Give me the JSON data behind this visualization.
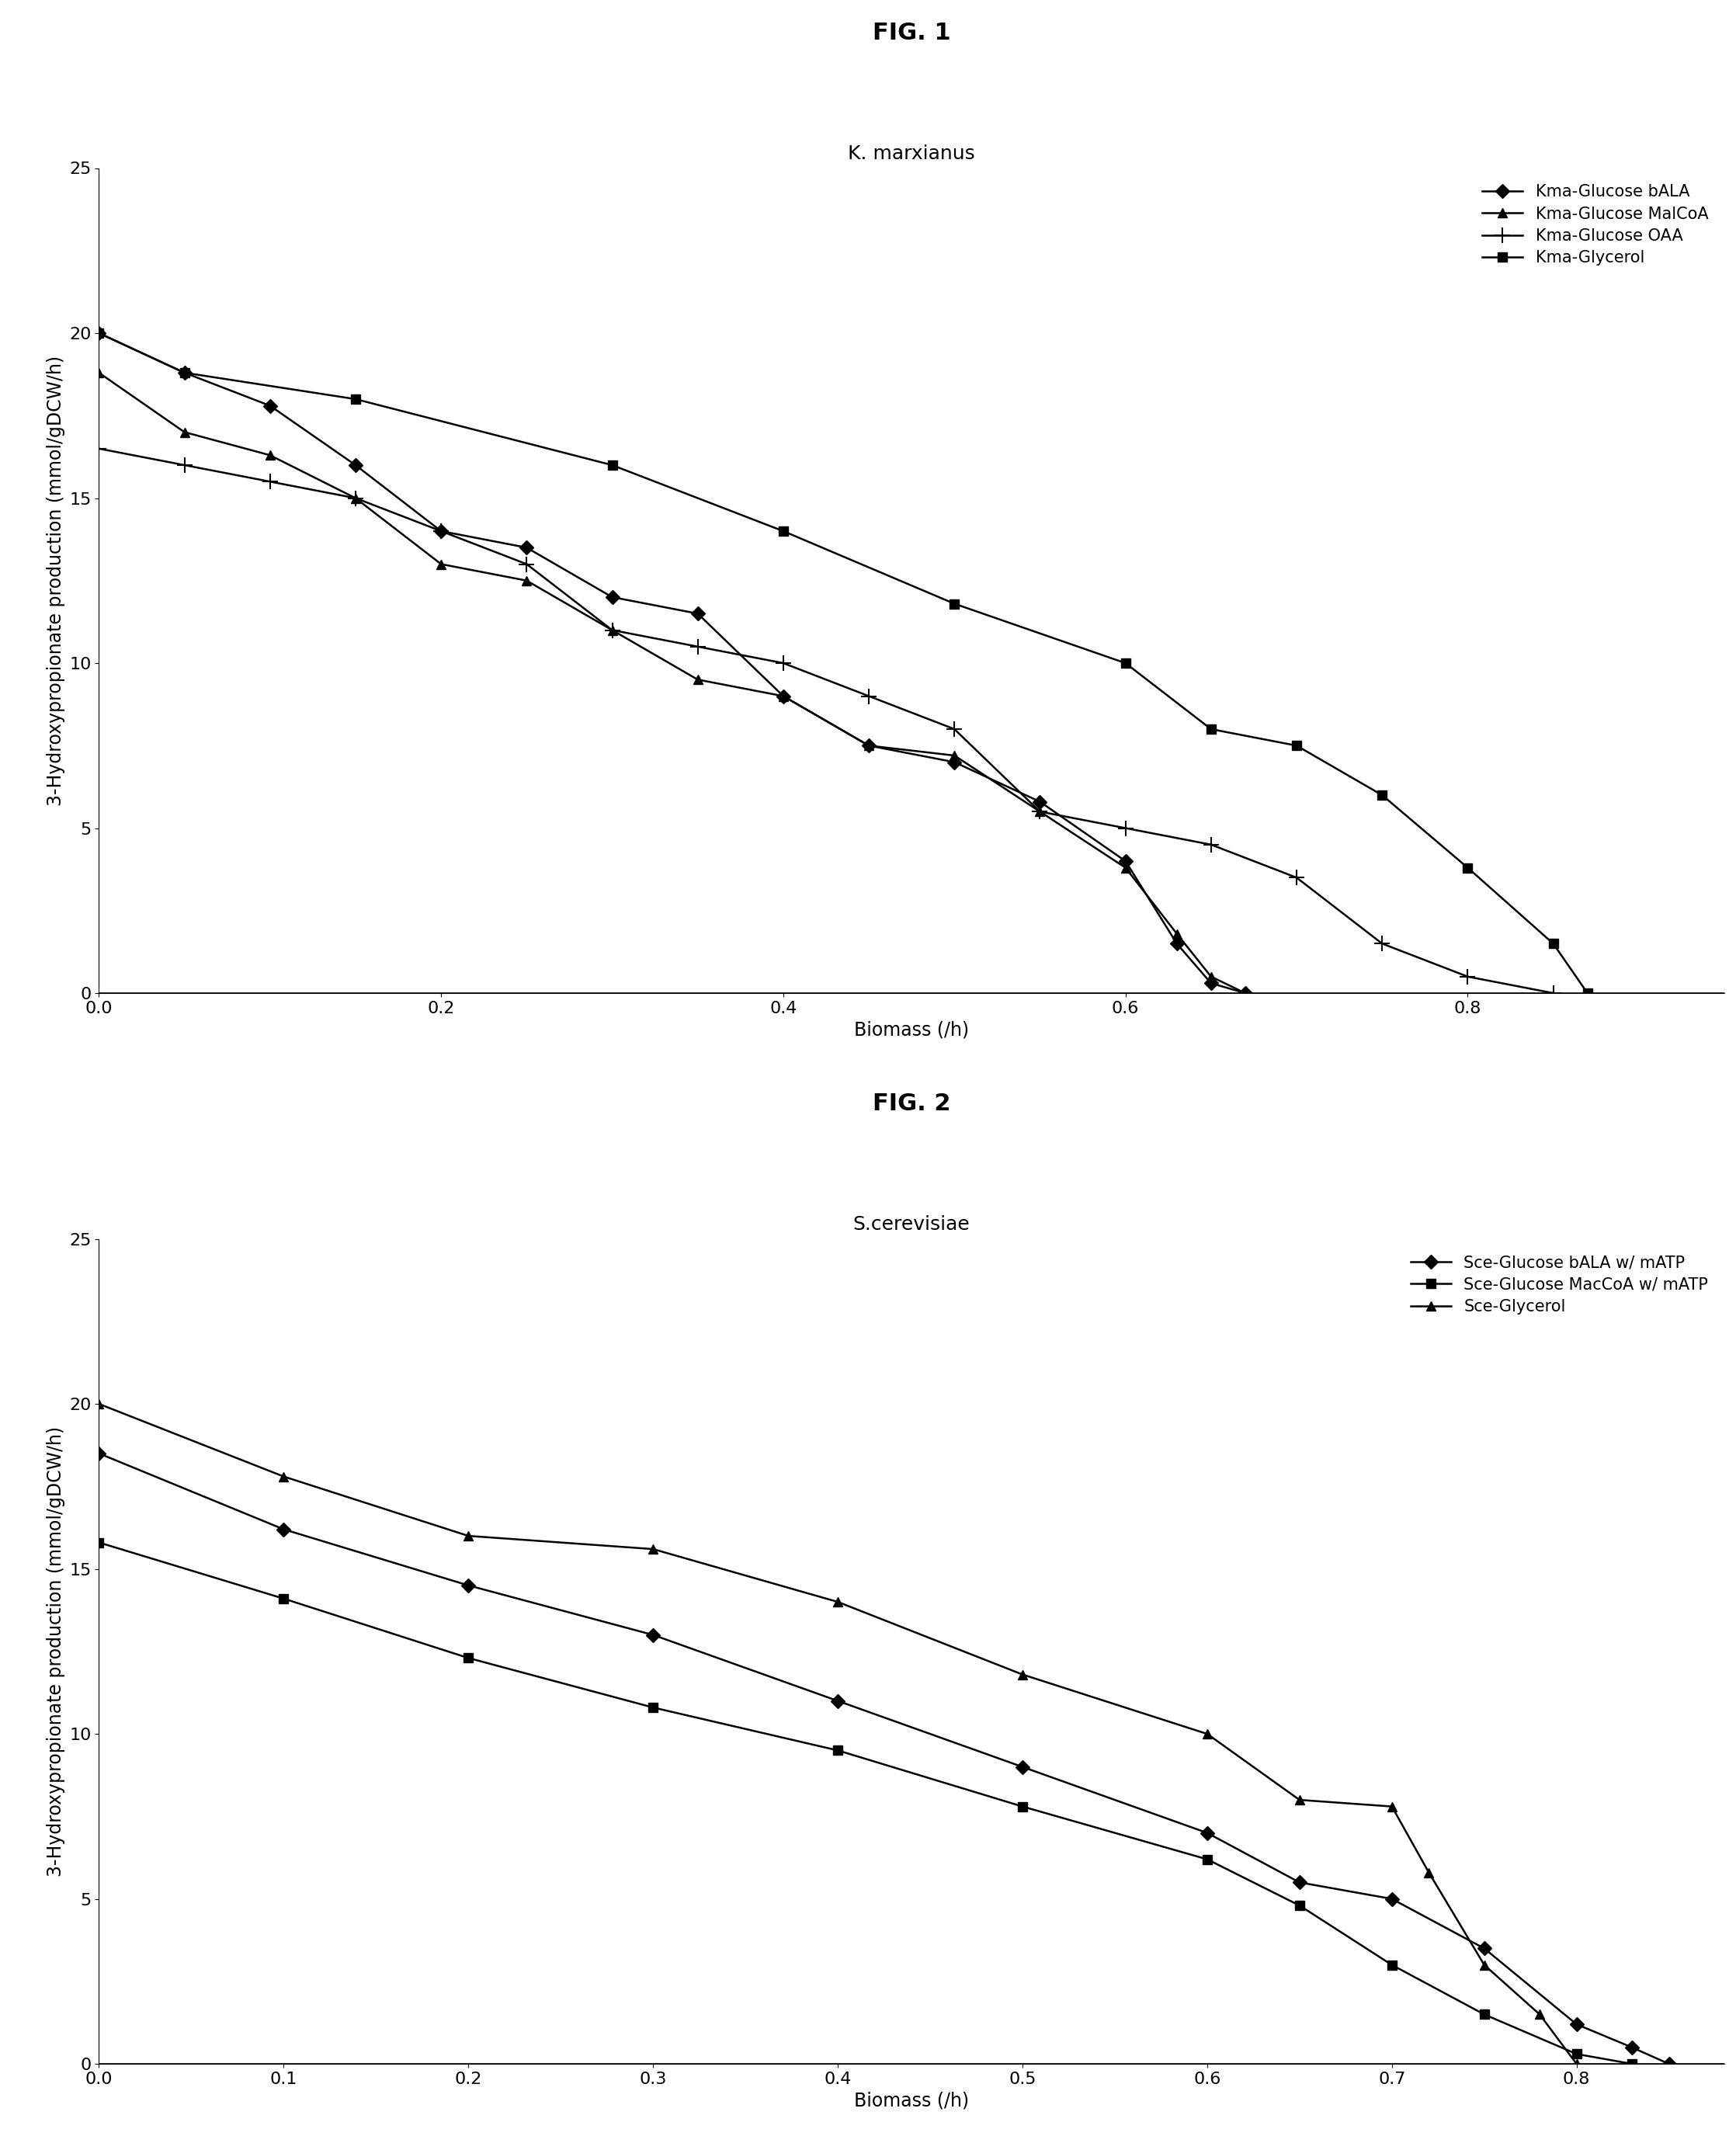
{
  "fig1_title": "FIG. 1",
  "fig1_subtitle": "K. marxianus",
  "fig2_title": "FIG. 2",
  "fig2_subtitle": "S.cerevisiae",
  "ylabel": "3-Hydroxypropionate production (mmol/gDCW/h)",
  "xlabel": "Biomass (/h)",
  "ylim": [
    0,
    25
  ],
  "fig1_xlim": [
    0,
    0.95
  ],
  "fig2_xlim": [
    0,
    0.88
  ],
  "fig1_series": [
    {
      "label": "Kma-Glucose bALA",
      "marker": "D",
      "x": [
        0.0,
        0.05,
        0.1,
        0.15,
        0.2,
        0.25,
        0.3,
        0.35,
        0.4,
        0.45,
        0.5,
        0.55,
        0.6,
        0.63,
        0.65,
        0.67
      ],
      "y": [
        20.0,
        18.8,
        17.8,
        16.0,
        14.0,
        13.5,
        12.0,
        11.5,
        9.0,
        7.5,
        7.0,
        5.8,
        4.0,
        1.5,
        0.3,
        0.0
      ]
    },
    {
      "label": "Kma-Glucose MalCoA",
      "marker": "^",
      "x": [
        0.0,
        0.05,
        0.1,
        0.15,
        0.2,
        0.25,
        0.3,
        0.35,
        0.4,
        0.45,
        0.5,
        0.55,
        0.6,
        0.63,
        0.65,
        0.67
      ],
      "y": [
        18.8,
        17.0,
        16.3,
        15.0,
        13.0,
        12.5,
        11.0,
        9.5,
        9.0,
        7.5,
        7.2,
        5.5,
        3.8,
        1.8,
        0.5,
        0.0
      ]
    },
    {
      "label": "Kma-Glucose OAA",
      "marker": "+",
      "x": [
        0.0,
        0.05,
        0.1,
        0.15,
        0.2,
        0.25,
        0.3,
        0.35,
        0.4,
        0.45,
        0.5,
        0.55,
        0.6,
        0.65,
        0.7,
        0.75,
        0.8,
        0.85
      ],
      "y": [
        16.5,
        16.0,
        15.5,
        15.0,
        14.0,
        13.0,
        11.0,
        10.5,
        10.0,
        9.0,
        8.0,
        5.5,
        5.0,
        4.5,
        3.5,
        1.5,
        0.5,
        0.0
      ]
    },
    {
      "label": "Kma-Glycerol",
      "marker": "s",
      "x": [
        0.0,
        0.05,
        0.15,
        0.3,
        0.4,
        0.5,
        0.6,
        0.65,
        0.7,
        0.75,
        0.8,
        0.85,
        0.87
      ],
      "y": [
        20.0,
        18.8,
        18.0,
        16.0,
        14.0,
        11.8,
        10.0,
        8.0,
        7.5,
        6.0,
        3.8,
        1.5,
        0.0
      ]
    }
  ],
  "fig2_series": [
    {
      "label": "Sce-Glucose bALA w/ mATP",
      "marker": "D",
      "x": [
        0.0,
        0.1,
        0.2,
        0.3,
        0.4,
        0.5,
        0.6,
        0.65,
        0.7,
        0.75,
        0.8,
        0.83,
        0.85
      ],
      "y": [
        18.5,
        16.2,
        14.5,
        13.0,
        11.0,
        9.0,
        7.0,
        5.5,
        5.0,
        3.5,
        1.2,
        0.5,
        0.0
      ]
    },
    {
      "label": "Sce-Glucose MacCoA w/ mATP",
      "marker": "s",
      "x": [
        0.0,
        0.1,
        0.2,
        0.3,
        0.4,
        0.5,
        0.6,
        0.65,
        0.7,
        0.75,
        0.8,
        0.83
      ],
      "y": [
        15.8,
        14.1,
        12.3,
        10.8,
        9.5,
        7.8,
        6.2,
        4.8,
        3.0,
        1.5,
        0.3,
        0.0
      ]
    },
    {
      "label": "Sce-Glycerol",
      "marker": "^",
      "x": [
        0.0,
        0.1,
        0.2,
        0.3,
        0.4,
        0.5,
        0.6,
        0.65,
        0.7,
        0.72,
        0.75,
        0.78,
        0.8
      ],
      "y": [
        20.0,
        17.8,
        16.0,
        15.6,
        14.0,
        11.8,
        10.0,
        8.0,
        7.8,
        5.8,
        3.0,
        1.5,
        0.0
      ]
    }
  ],
  "line_color": "#000000",
  "background_color": "#ffffff",
  "fig_title_fontsize": 22,
  "subtitle_fontsize": 18,
  "label_fontsize": 17,
  "tick_fontsize": 16,
  "legend_fontsize": 15,
  "marker_size": 9,
  "line_width": 1.8
}
